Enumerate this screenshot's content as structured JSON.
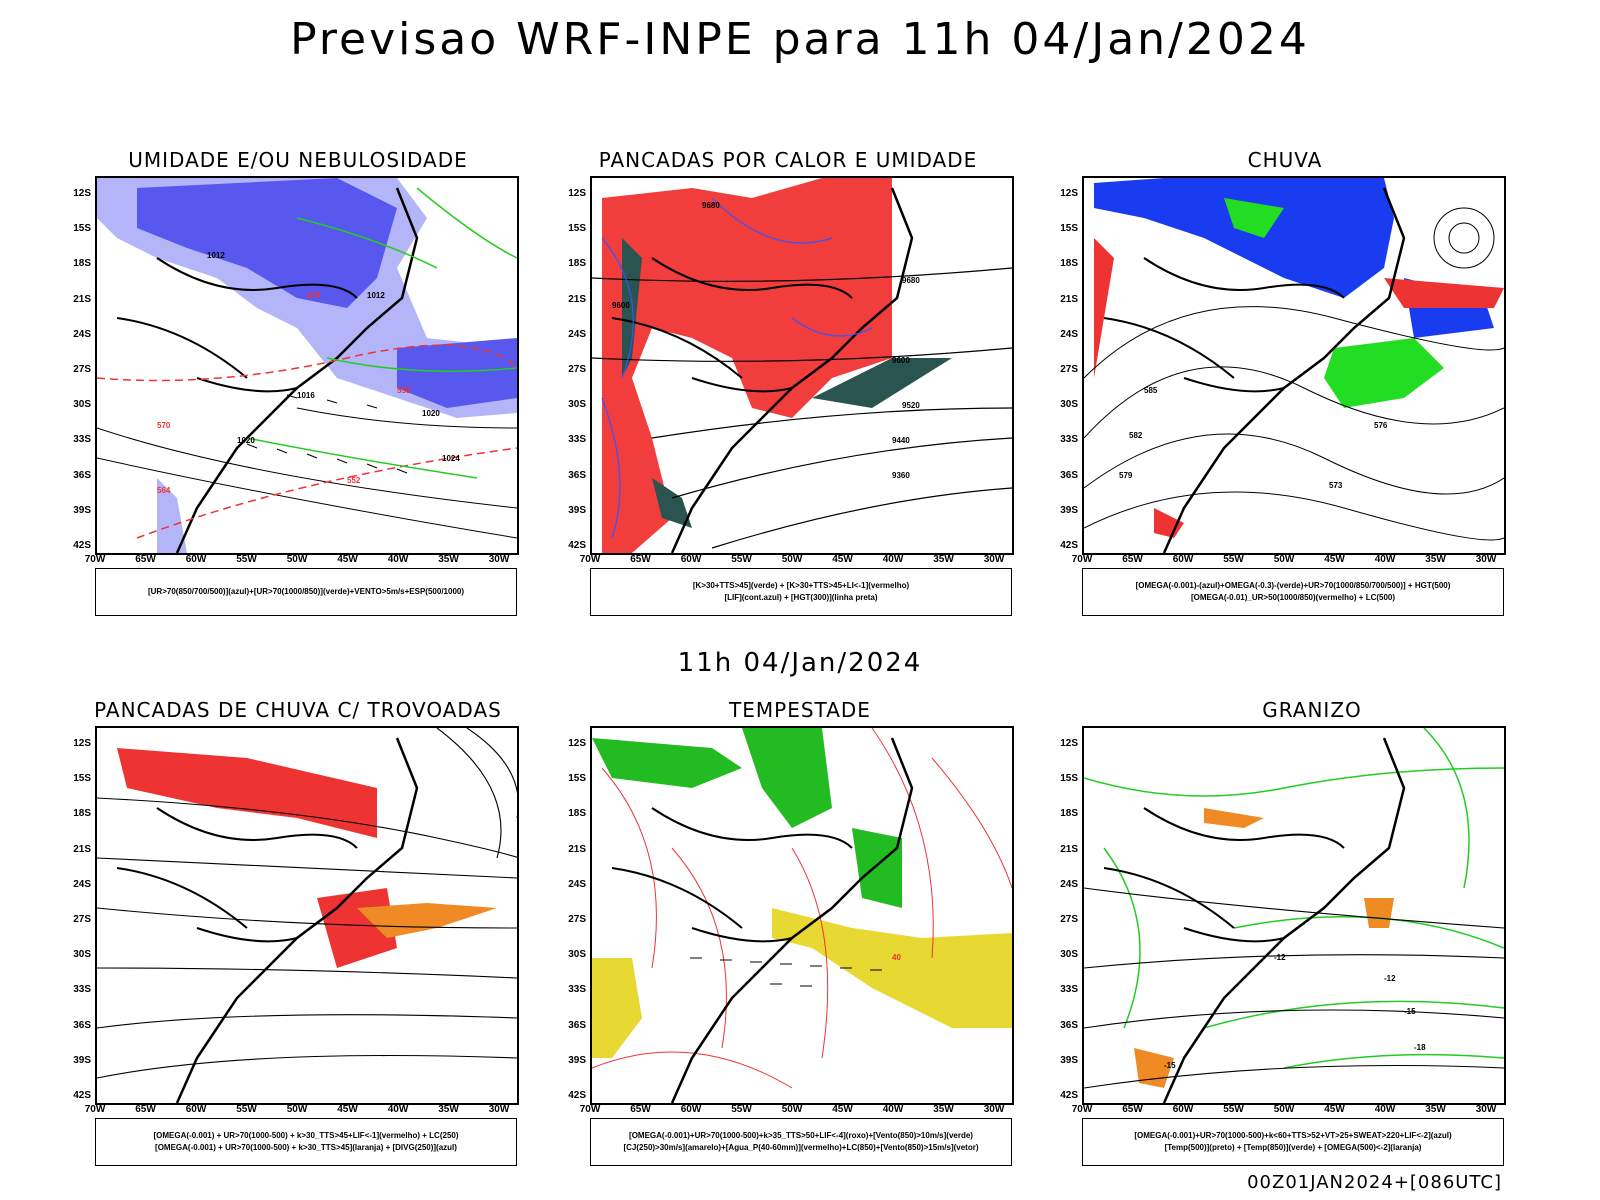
{
  "header": {
    "title": "Previsao WRF-INPE  para 11h 04/Jan/2024"
  },
  "mid_title": "11h 04/Jan/2024",
  "footer": "00Z01JAN2024+[086UTC]",
  "lat_labels": [
    "12S",
    "15S",
    "18S",
    "21S",
    "24S",
    "27S",
    "30S",
    "33S",
    "36S",
    "39S",
    "42S"
  ],
  "lon_labels": [
    "70W",
    "65W",
    "60W",
    "55W",
    "50W",
    "45W",
    "40W",
    "35W",
    "30W"
  ],
  "panels": [
    {
      "title": "UMIDADE E/OU NEBULOSIDADE",
      "legend": [
        "[UR>70(850/700/500)](azul)+[UR>70(1000/850)](verde)+VENTO>5m/s+ESP(500/1000)"
      ],
      "colors": [
        "#5858ee",
        "#b4b4f8",
        "#22cc22",
        "#ee3333"
      ]
    },
    {
      "title": "PANCADAS POR CALOR E UMIDADE",
      "legend": [
        "[K>30+TTS>45](verde) + [K>30+TTS>45+LI<-1](vermelho)",
        "[LIF](cont.azul) + [HGT(300)](linha preta)"
      ],
      "colors": [
        "#f23d3d",
        "#2a5450",
        "#3355ff"
      ]
    },
    {
      "title": "CHUVA",
      "legend": [
        "[OMEGA(-0.001)-(azul)+OMEGA(-0.3)-(verde)+UR>70(1000/850/700/500)] + HGT(500)",
        "[OMEGA(-0.01)_UR>50(1000/850)(vermelho) + LC(500)"
      ],
      "colors": [
        "#1a3cf0",
        "#22dd22",
        "#ee3333"
      ]
    },
    {
      "title": "PANCADAS DE CHUVA C/ TROVOADAS",
      "legend": [
        "[OMEGA(-0.001) + UR>70(1000-500) + k>30_TTS>45+LIF<-1](vermelho) + LC(250)",
        "[OMEGA(-0.001) + UR>70(1000-500) + k>30_TTS>45](laranja) + [DIVG(250)](azul)"
      ],
      "colors": [
        "#ee3333",
        "#f08a24",
        "#3355ff"
      ]
    },
    {
      "title": "TEMPESTADE",
      "legend": [
        "[OMEGA(-0.001)+UR>70(1000-500)+k>35_TTS>50+LIF<-4](roxo)+[Vento(850)>10m/s](verde)",
        "[CJ(250)>30m/s](amarelo)+[Agua_P(40-60mm)](vermelho)+LC(850)+[Vento(850)>15m/s](vetor)"
      ],
      "colors": [
        "#e8d832",
        "#22bb22",
        "#ee3333"
      ]
    },
    {
      "title": "GRANIZO",
      "legend": [
        "[OMEGA(-0.001)+UR>70(1000-500)+k<60+TTS>52+VT>25+SWEAT>220+LIF<-2](azul)",
        "[Temp(500)](preto) + [Temp(850)](verde) + [OMEGA(500)<-2](laranja)"
      ],
      "colors": [
        "#22cc22",
        "#f08a24",
        "#000000"
      ]
    }
  ],
  "contour_labels": {
    "p1": [
      "1012",
      "1012",
      "1016",
      "1020",
      "1020",
      "1024",
      "576",
      "570",
      "564",
      "552",
      "558"
    ],
    "p2": [
      "9680",
      "9680",
      "9600",
      "9600",
      "9520",
      "9440",
      "9360"
    ],
    "p3": [
      "585",
      "582",
      "579",
      "576",
      "573"
    ],
    "p5": [
      "40"
    ],
    "p6": [
      "-12",
      "-15",
      "-18",
      "-15",
      "-12"
    ]
  }
}
